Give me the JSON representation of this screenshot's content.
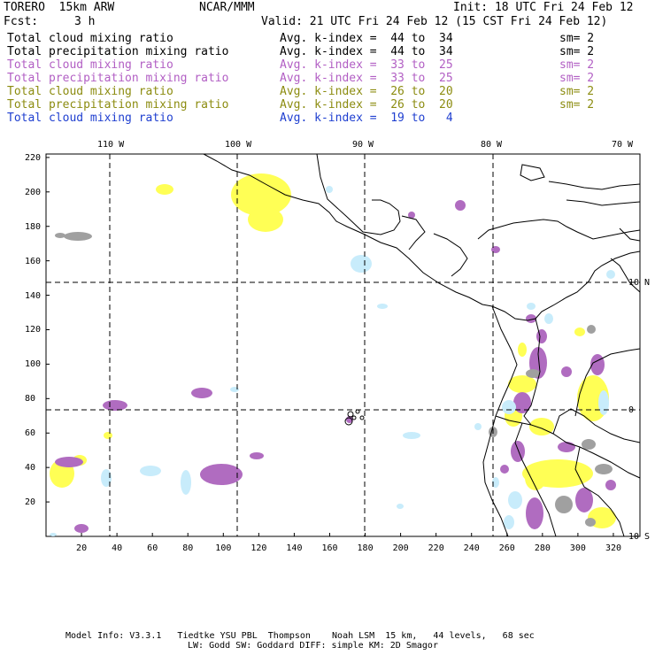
{
  "header": {
    "model": "TORERO  15km ARW",
    "org": "NCAR/MMM",
    "init": "Init: 18 UTC Fri 24 Feb 12",
    "fcst_label": "Fcst:",
    "fcst_value": "3 h",
    "valid": "Valid: 21 UTC Fri 24 Feb 12 (15 CST Fri 24 Feb 12)"
  },
  "legend": [
    {
      "field": "Total cloud mixing ratio",
      "avg": "Avg. k-index =  44 to  34",
      "sm": "sm= 2",
      "color": "#000000"
    },
    {
      "field": "Total precipitation mixing ratio",
      "avg": "Avg. k-index =  44 to  34",
      "sm": "sm= 2",
      "color": "#000000"
    },
    {
      "field": "Total cloud mixing ratio",
      "avg": "Avg. k-index =  33 to  25",
      "sm": "sm= 2",
      "color": "#b25fc4"
    },
    {
      "field": "Total precipitation mixing ratio",
      "avg": "Avg. k-index =  33 to  25",
      "sm": "sm= 2",
      "color": "#b25fc4"
    },
    {
      "field": "Total cloud mixing ratio",
      "avg": "Avg. k-index =  26 to  20",
      "sm": "sm= 2",
      "color": "#8c8c10"
    },
    {
      "field": "Total precipitation mixing ratio",
      "avg": "Avg. k-index =  26 to  20",
      "sm": "sm= 2",
      "color": "#8c8c10"
    },
    {
      "field": "Total cloud mixing ratio",
      "avg": "Avg. k-index =  19 to   4",
      "sm": "",
      "color": "#1f3fd0"
    }
  ],
  "axes": {
    "lon_labels": [
      "110 W",
      "100 W",
      "90 W",
      "80 W",
      "70 W"
    ],
    "lat_labels": [
      "10 N",
      "0",
      "10 S"
    ],
    "x_ticks": [
      "20",
      "40",
      "60",
      "80",
      "100",
      "120",
      "140",
      "160",
      "180",
      "200",
      "220",
      "240",
      "260",
      "280",
      "300",
      "320"
    ],
    "y_ticks": [
      "220",
      "200",
      "180",
      "160",
      "140",
      "120",
      "100",
      "80",
      "60",
      "40",
      "20"
    ]
  },
  "palette": {
    "yellow": "#ffff55",
    "purple": "#b06cc0",
    "gray": "#a0a0a0",
    "lightblue": "#c8ecfb"
  },
  "footer": {
    "line1": "Model Info: V3.3.1   Tiedtke YSU PBL  Thompson    Noah LSM  15 km,   44 levels,   68 sec",
    "line2": "LW: Godd SW: Goddard DIFF: simple KM: 2D Smagor"
  }
}
